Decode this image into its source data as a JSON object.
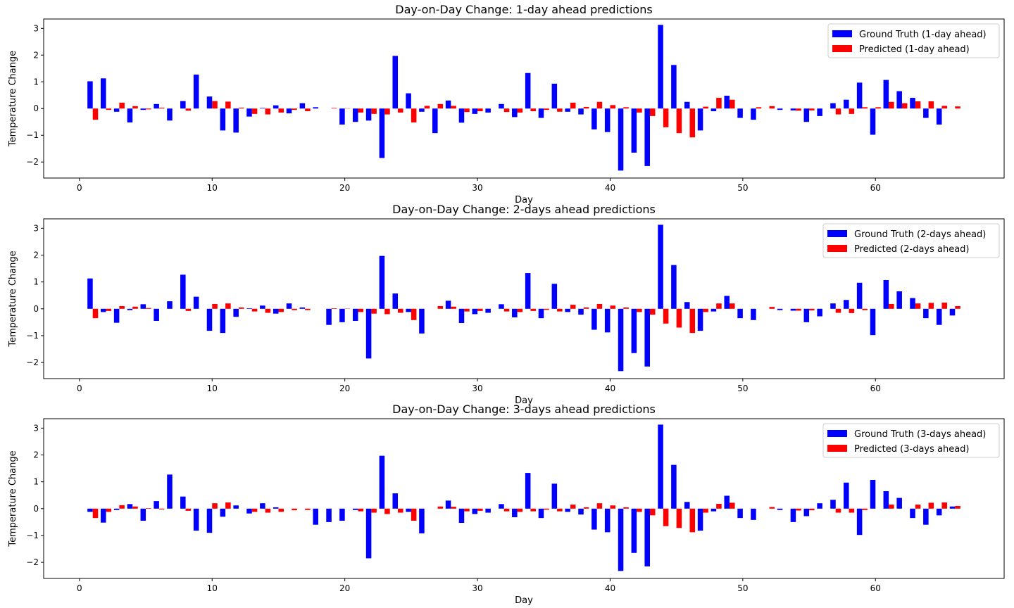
{
  "chart_data": [
    {
      "type": "bar",
      "title": "Day-on-Day Change: 1-day ahead predictions",
      "xlabel": "Day",
      "ylabel": "Temperature Change",
      "xlim": [
        -2.7,
        69.7
      ],
      "ylim": [
        -2.6,
        3.35
      ],
      "xticks": [
        0,
        10,
        20,
        30,
        40,
        50,
        60
      ],
      "yticks": [
        -2,
        -1,
        0,
        1,
        2,
        3
      ],
      "ytick_labels": [
        "−2",
        "−1",
        "0",
        "1",
        "2",
        "3"
      ],
      "legend_position": "upper right",
      "x": [
        1,
        2,
        3,
        4,
        5,
        6,
        7,
        8,
        9,
        10,
        11,
        12,
        13,
        14,
        15,
        16,
        17,
        18,
        19,
        20,
        21,
        22,
        23,
        24,
        25,
        26,
        27,
        28,
        29,
        30,
        31,
        32,
        33,
        34,
        35,
        36,
        37,
        38,
        39,
        40,
        41,
        42,
        43,
        44,
        45,
        46,
        47,
        48,
        49,
        50,
        51,
        52,
        53,
        54,
        55,
        56,
        57,
        58,
        59,
        60,
        61,
        62,
        63,
        64,
        65,
        66
      ],
      "series": [
        {
          "name": "Ground Truth (1-day ahead)",
          "color": "#0000ff",
          "values": [
            1.02,
            1.13,
            -0.12,
            -0.52,
            -0.05,
            0.17,
            -0.45,
            0.28,
            1.27,
            0.45,
            -0.82,
            -0.9,
            -0.3,
            0.02,
            0.12,
            -0.18,
            0.2,
            0.05,
            0.0,
            -0.6,
            -0.5,
            -0.45,
            -1.85,
            1.97,
            0.57,
            -0.12,
            -0.92,
            0.3,
            -0.53,
            -0.2,
            -0.15,
            0.17,
            -0.32,
            1.33,
            -0.35,
            0.93,
            -0.12,
            -0.22,
            -0.78,
            -0.88,
            -2.32,
            -1.65,
            -2.15,
            3.13,
            1.63,
            0.25,
            -0.82,
            -0.1,
            0.48,
            -0.35,
            -0.42,
            0.0,
            -0.05,
            -0.07,
            -0.5,
            -0.28,
            0.2,
            0.33,
            0.97,
            -0.98,
            1.07,
            0.65,
            0.4,
            -0.35,
            -0.6,
            0.0
          ]
        },
        {
          "name": "Predicted (1-day ahead)",
          "color": "#ff0000",
          "values": [
            -0.42,
            -0.05,
            0.22,
            0.09,
            -0.03,
            0.03,
            0.0,
            -0.08,
            0.0,
            0.28,
            0.26,
            0.03,
            -0.2,
            -0.22,
            -0.15,
            -0.05,
            -0.1,
            0.0,
            0.02,
            0.01,
            -0.15,
            -0.2,
            -0.22,
            -0.15,
            -0.52,
            0.1,
            0.17,
            0.1,
            -0.13,
            -0.1,
            0.0,
            -0.13,
            -0.15,
            -0.1,
            -0.05,
            -0.12,
            0.22,
            0.06,
            0.25,
            0.13,
            0.05,
            -0.15,
            -0.28,
            -0.7,
            -0.92,
            -1.08,
            0.07,
            0.4,
            0.33,
            0.0,
            0.05,
            0.09,
            0.0,
            -0.08,
            -0.07,
            0.0,
            -0.22,
            -0.2,
            0.05,
            0.05,
            0.25,
            0.2,
            0.27,
            0.27,
            0.1,
            0.08
          ]
        }
      ]
    },
    {
      "type": "bar",
      "title": "Day-on-Day Change: 2-days ahead predictions",
      "xlabel": "Day",
      "ylabel": "Temperature Change",
      "xlim": [
        -2.7,
        69.7
      ],
      "ylim": [
        -2.6,
        3.35
      ],
      "xticks": [
        0,
        10,
        20,
        30,
        40,
        50,
        60
      ],
      "yticks": [
        -2,
        -1,
        0,
        1,
        2,
        3
      ],
      "ytick_labels": [
        "−2",
        "−1",
        "0",
        "1",
        "2",
        "3"
      ],
      "legend_position": "upper right",
      "x": [
        1,
        2,
        3,
        4,
        5,
        6,
        7,
        8,
        9,
        10,
        11,
        12,
        13,
        14,
        15,
        16,
        17,
        18,
        19,
        20,
        21,
        22,
        23,
        24,
        25,
        26,
        27,
        28,
        29,
        30,
        31,
        32,
        33,
        34,
        35,
        36,
        37,
        38,
        39,
        40,
        41,
        42,
        43,
        44,
        45,
        46,
        47,
        48,
        49,
        50,
        51,
        52,
        53,
        54,
        55,
        56,
        57,
        58,
        59,
        60,
        61,
        62,
        63,
        64,
        65,
        66
      ],
      "series": [
        {
          "name": "Ground Truth (2-days ahead)",
          "color": "#0000ff",
          "values": [
            1.13,
            -0.12,
            -0.52,
            -0.05,
            0.17,
            -0.45,
            0.28,
            1.27,
            0.45,
            -0.82,
            -0.9,
            -0.3,
            0.02,
            0.12,
            -0.18,
            0.2,
            0.05,
            0.0,
            -0.6,
            -0.5,
            -0.45,
            -1.85,
            1.97,
            0.57,
            -0.12,
            -0.92,
            0.0,
            0.3,
            -0.53,
            -0.2,
            -0.15,
            0.17,
            -0.32,
            1.33,
            -0.35,
            0.93,
            -0.12,
            -0.22,
            -0.78,
            -0.88,
            -2.32,
            -1.65,
            -2.15,
            3.13,
            1.63,
            0.25,
            -0.82,
            -0.1,
            0.48,
            -0.35,
            -0.42,
            0.0,
            -0.05,
            -0.07,
            -0.5,
            -0.28,
            0.2,
            0.33,
            0.97,
            -0.98,
            1.07,
            0.65,
            0.4,
            -0.35,
            -0.6,
            -0.25
          ]
        },
        {
          "name": "Predicted (2-days ahead)",
          "color": "#ff0000",
          "values": [
            -0.35,
            -0.08,
            0.1,
            0.08,
            0.03,
            0.0,
            0.0,
            -0.08,
            0.0,
            0.18,
            0.2,
            0.05,
            -0.1,
            -0.15,
            -0.12,
            -0.05,
            -0.05,
            0.0,
            0.02,
            0.01,
            -0.12,
            -0.18,
            -0.2,
            -0.15,
            -0.42,
            0.0,
            0.1,
            0.08,
            -0.1,
            -0.08,
            0.0,
            -0.1,
            -0.12,
            -0.08,
            -0.04,
            -0.1,
            0.15,
            0.05,
            0.18,
            0.12,
            0.05,
            -0.12,
            -0.22,
            -0.55,
            -0.7,
            -0.9,
            -0.12,
            0.2,
            0.2,
            0.0,
            0.0,
            0.07,
            0.0,
            -0.07,
            -0.06,
            0.0,
            -0.15,
            -0.16,
            -0.05,
            0.0,
            0.18,
            0.0,
            0.2,
            0.22,
            0.23,
            0.1
          ]
        }
      ]
    },
    {
      "type": "bar",
      "title": "Day-on-Day Change: 3-days ahead predictions",
      "xlabel": "Day",
      "ylabel": "Temperature Change",
      "xlim": [
        -2.7,
        69.7
      ],
      "ylim": [
        -2.6,
        3.35
      ],
      "xticks": [
        0,
        10,
        20,
        30,
        40,
        50,
        60
      ],
      "yticks": [
        -2,
        -1,
        0,
        1,
        2,
        3
      ],
      "ytick_labels": [
        "−2",
        "−1",
        "0",
        "1",
        "2",
        "3"
      ],
      "legend_position": "upper right",
      "x": [
        1,
        2,
        3,
        4,
        5,
        6,
        7,
        8,
        9,
        10,
        11,
        12,
        13,
        14,
        15,
        16,
        17,
        18,
        19,
        20,
        21,
        22,
        23,
        24,
        25,
        26,
        27,
        28,
        29,
        30,
        31,
        32,
        33,
        34,
        35,
        36,
        37,
        38,
        39,
        40,
        41,
        42,
        43,
        44,
        45,
        46,
        47,
        48,
        49,
        50,
        51,
        52,
        53,
        54,
        55,
        56,
        57,
        58,
        59,
        60,
        61,
        62,
        63,
        64,
        65,
        66
      ],
      "series": [
        {
          "name": "Ground Truth (3-days ahead)",
          "color": "#0000ff",
          "values": [
            -0.12,
            -0.52,
            -0.05,
            0.17,
            -0.45,
            0.28,
            1.27,
            0.45,
            -0.82,
            -0.9,
            -0.3,
            0.12,
            -0.18,
            0.2,
            0.05,
            0.0,
            0.0,
            -0.6,
            -0.5,
            -0.45,
            -0.05,
            -1.85,
            1.97,
            0.57,
            -0.12,
            -0.92,
            0.0,
            0.3,
            -0.53,
            -0.2,
            -0.15,
            0.17,
            -0.32,
            1.33,
            -0.35,
            0.93,
            -0.12,
            -0.22,
            -0.78,
            -0.88,
            -2.32,
            -1.65,
            -2.15,
            3.13,
            1.63,
            0.25,
            -0.82,
            -0.1,
            0.48,
            -0.35,
            -0.42,
            0.0,
            -0.05,
            -0.5,
            -0.28,
            0.2,
            0.33,
            0.97,
            -0.98,
            1.07,
            0.65,
            0.4,
            -0.35,
            -0.6,
            -0.25,
            0.08
          ]
        },
        {
          "name": "Predicted (3-days ahead)",
          "color": "#ff0000",
          "values": [
            -0.35,
            -0.12,
            0.13,
            0.08,
            0.02,
            -0.03,
            0.0,
            -0.08,
            0.0,
            0.2,
            0.23,
            0.0,
            -0.12,
            -0.15,
            -0.12,
            -0.06,
            -0.05,
            0.0,
            0.0,
            0.0,
            -0.1,
            -0.15,
            -0.2,
            -0.15,
            -0.45,
            0.0,
            0.08,
            0.07,
            -0.1,
            -0.08,
            0.0,
            -0.1,
            -0.12,
            -0.1,
            -0.04,
            -0.1,
            0.15,
            0.05,
            0.2,
            0.12,
            0.05,
            -0.12,
            -0.25,
            -0.65,
            -0.72,
            -0.88,
            -0.15,
            0.18,
            0.22,
            0.0,
            0.0,
            0.06,
            0.0,
            -0.07,
            -0.06,
            0.0,
            -0.15,
            -0.15,
            -0.05,
            0.0,
            0.15,
            0.0,
            0.15,
            0.22,
            0.23,
            0.1
          ]
        }
      ]
    }
  ]
}
